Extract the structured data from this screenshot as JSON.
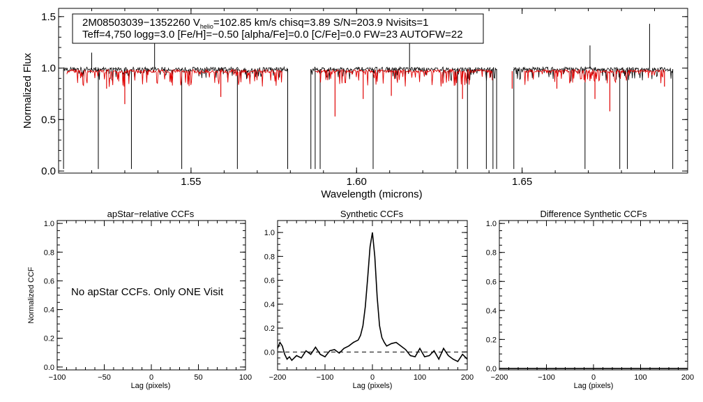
{
  "chart_data": [
    {
      "type": "line",
      "title": "",
      "xlabel": "Wavelength (microns)",
      "ylabel": "Normalized Flux",
      "xlim": [
        1.51,
        1.7
      ],
      "ylim": [
        -0.02,
        1.58
      ],
      "x_ticks": [
        {
          "v": 1.55,
          "label": "1.55"
        },
        {
          "v": 1.6,
          "label": "1.60"
        },
        {
          "v": 1.65,
          "label": "1.65"
        }
      ],
      "y_ticks": [
        {
          "v": 0.0,
          "label": "0.0"
        },
        {
          "v": 0.5,
          "label": "0.5"
        },
        {
          "v": 1.0,
          "label": "1.0"
        },
        {
          "v": 1.5,
          "label": "1.5"
        }
      ],
      "info": {
        "star_id": "2M08503039−1352260",
        "v_symbol": "V",
        "v_sub": "helio",
        "line1_rest": "=102.85 km/s  chisq=3.89  S/N=203.9  Nvisits=1",
        "line2": "Teff=4,750 logg=3.0 [Fe/H]=−0.50 [alpha/Fe]=0.0 [C/Fe]=0.0 FW=23 AUTOFW=22"
      },
      "chips": [
        [
          1.5115,
          1.5792
        ],
        [
          1.5862,
          1.6423
        ],
        [
          1.6475,
          1.6955
        ]
      ],
      "model_ranges": [
        [
          1.5125,
          1.5775
        ],
        [
          1.5875,
          1.641
        ],
        [
          1.6505,
          1.693
        ]
      ],
      "series": [
        {
          "name": "observed",
          "color": "#000000",
          "baseline": 0.99
        },
        {
          "name": "model",
          "color": "#e00000",
          "baseline": 0.97
        }
      ],
      "spikes": [
        {
          "x": 1.522,
          "y": 0.02
        },
        {
          "x": 1.532,
          "y": 0.02
        },
        {
          "x": 1.5472,
          "y": 0.02
        },
        {
          "x": 1.564,
          "y": 0.02
        },
        {
          "x": 1.5875,
          "y": 0.02
        },
        {
          "x": 1.589,
          "y": 0.02
        },
        {
          "x": 1.605,
          "y": 0.02
        },
        {
          "x": 1.6305,
          "y": 0.02
        },
        {
          "x": 1.6335,
          "y": 0.02
        },
        {
          "x": 1.6392,
          "y": 0.02
        },
        {
          "x": 1.6412,
          "y": 0.02
        },
        {
          "x": 1.669,
          "y": 0.02
        },
        {
          "x": 1.6795,
          "y": 0.02
        },
        {
          "x": 1.6818,
          "y": 0.02
        },
        {
          "x": 1.539,
          "y": 1.32
        },
        {
          "x": 1.616,
          "y": 1.32
        },
        {
          "x": 1.6885,
          "y": 1.43
        },
        {
          "x": 1.6705,
          "y": 1.22
        },
        {
          "x": 1.52,
          "y": 1.15
        }
      ],
      "model_dips": [
        {
          "x": 1.53,
          "y": 0.65
        },
        {
          "x": 1.5245,
          "y": 0.8
        },
        {
          "x": 1.559,
          "y": 0.72
        },
        {
          "x": 1.5935,
          "y": 0.53
        },
        {
          "x": 1.602,
          "y": 0.7
        },
        {
          "x": 1.6105,
          "y": 0.73
        },
        {
          "x": 1.632,
          "y": 0.7
        },
        {
          "x": 1.647,
          "y": 0.8
        },
        {
          "x": 1.6765,
          "y": 0.58
        },
        {
          "x": 1.672,
          "y": 0.7
        },
        {
          "x": 1.693,
          "y": 0.82
        },
        {
          "x": 1.6605,
          "y": 0.8
        }
      ]
    },
    {
      "type": "line",
      "title": "apStar−relative CCFs",
      "xlabel": "Lag (pixels)",
      "ylabel": "Normalized CCF",
      "xlim": [
        -100,
        100
      ],
      "ylim": [
        -0.02,
        1.02
      ],
      "x_ticks": [
        {
          "v": -100,
          "label": "−100"
        },
        {
          "v": -50,
          "label": "−50"
        },
        {
          "v": 0,
          "label": "0"
        },
        {
          "v": 50,
          "label": "50"
        },
        {
          "v": 100,
          "label": "100"
        }
      ],
      "y_ticks": [
        {
          "v": 0.0,
          "label": "0.0"
        },
        {
          "v": 0.2,
          "label": "0.2"
        },
        {
          "v": 0.4,
          "label": "0.4"
        },
        {
          "v": 0.6,
          "label": "0.6"
        },
        {
          "v": 0.8,
          "label": "0.8"
        },
        {
          "v": 1.0,
          "label": "1.0"
        }
      ],
      "annotation": "No apStar CCFs.  Only ONE Visit",
      "series": []
    },
    {
      "type": "line",
      "title": "Synthetic CCFs",
      "xlabel": "Lag (pixels)",
      "ylabel": "",
      "xlim": [
        -200,
        200
      ],
      "ylim": [
        -0.15,
        1.1
      ],
      "x_ticks": [
        {
          "v": -200,
          "label": "−200"
        },
        {
          "v": -100,
          "label": "−100"
        },
        {
          "v": 0,
          "label": "0"
        },
        {
          "v": 100,
          "label": "100"
        },
        {
          "v": 200,
          "label": "200"
        }
      ],
      "y_ticks": [
        {
          "v": 0.0,
          "label": "0.0"
        },
        {
          "v": 0.2,
          "label": "0.2"
        },
        {
          "v": 0.4,
          "label": "0.4"
        },
        {
          "v": 0.6,
          "label": "0.6"
        },
        {
          "v": 0.8,
          "label": "0.8"
        },
        {
          "v": 1.0,
          "label": "1.0"
        }
      ],
      "reference_line": {
        "y": 0.0,
        "style": "dashed"
      },
      "series": [
        {
          "name": "synthetic CCF",
          "color": "#000000",
          "x": [
            -200,
            -195,
            -190,
            -185,
            -180,
            -175,
            -170,
            -160,
            -150,
            -140,
            -130,
            -120,
            -110,
            -100,
            -90,
            -80,
            -70,
            -60,
            -50,
            -40,
            -30,
            -25,
            -20,
            -15,
            -10,
            -5,
            0,
            5,
            10,
            15,
            20,
            25,
            30,
            40,
            50,
            60,
            70,
            80,
            90,
            100,
            110,
            120,
            130,
            140,
            150,
            160,
            170,
            180,
            190,
            200
          ],
          "y": [
            0.03,
            0.08,
            0.05,
            -0.02,
            -0.06,
            -0.04,
            -0.07,
            -0.03,
            -0.05,
            0.01,
            -0.02,
            0.04,
            -0.02,
            -0.04,
            0.01,
            0.02,
            -0.01,
            0.03,
            0.05,
            0.08,
            0.1,
            0.14,
            0.22,
            0.38,
            0.62,
            0.88,
            1.0,
            0.8,
            0.46,
            0.22,
            0.12,
            0.08,
            0.05,
            0.07,
            0.08,
            0.05,
            0.02,
            -0.03,
            -0.04,
            0.03,
            -0.04,
            -0.03,
            0.01,
            -0.06,
            0.03,
            -0.03,
            -0.06,
            -0.08,
            -0.02,
            -0.06
          ]
        }
      ]
    },
    {
      "type": "line",
      "title": "Difference Synthetic CCFs",
      "xlabel": "Lag (pixels)",
      "ylabel": "",
      "xlim": [
        -200,
        200
      ],
      "ylim": [
        -0.01,
        1.02
      ],
      "x_ticks": [
        {
          "v": -200,
          "label": "−200"
        },
        {
          "v": -100,
          "label": "−100"
        },
        {
          "v": 0,
          "label": "0"
        },
        {
          "v": 100,
          "label": "100"
        },
        {
          "v": 200,
          "label": "200"
        }
      ],
      "y_ticks": [
        {
          "v": 0.0,
          "label": "0.0"
        },
        {
          "v": 0.2,
          "label": "0.2"
        },
        {
          "v": 0.4,
          "label": "0.4"
        },
        {
          "v": 0.6,
          "label": "0.6"
        },
        {
          "v": 0.8,
          "label": "0.8"
        },
        {
          "v": 1.0,
          "label": "1.0"
        }
      ],
      "series": [
        {
          "name": "difference CCF",
          "color": "#000000",
          "x": [
            -200,
            200
          ],
          "y": [
            0.0,
            0.0
          ]
        }
      ]
    }
  ]
}
